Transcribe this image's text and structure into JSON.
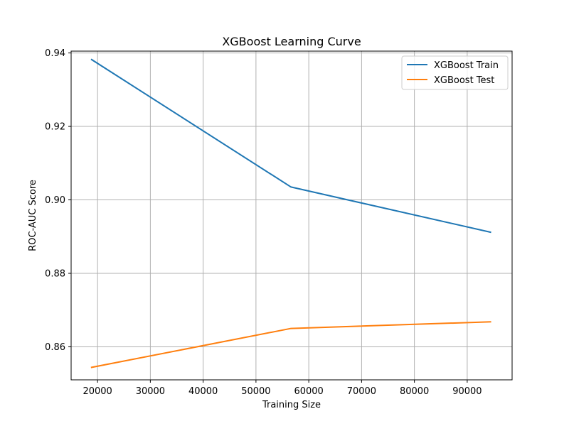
{
  "chart_data": {
    "type": "line",
    "title": "XGBoost Learning Curve",
    "xlabel": "Training Size",
    "ylabel": "ROC-AUC Score",
    "xlim": [
      15000,
      98500
    ],
    "ylim": [
      0.851,
      0.9405
    ],
    "x_ticks": [
      20000,
      30000,
      40000,
      50000,
      60000,
      70000,
      80000,
      90000
    ],
    "x_tick_labels": [
      "20000",
      "30000",
      "40000",
      "50000",
      "60000",
      "70000",
      "80000",
      "90000"
    ],
    "y_ticks": [
      0.86,
      0.88,
      0.9,
      0.92,
      0.94
    ],
    "y_tick_labels": [
      "0.86",
      "0.88",
      "0.90",
      "0.92",
      "0.94"
    ],
    "grid": true,
    "legend_position": "top-right",
    "x": [
      18880,
      56640,
      94400
    ],
    "series": [
      {
        "name": "XGBoost Train",
        "color": "#1f77b4",
        "values": [
          0.9382,
          0.9035,
          0.8912
        ]
      },
      {
        "name": "XGBoost Test",
        "color": "#ff7f0e",
        "values": [
          0.8544,
          0.865,
          0.8668
        ]
      }
    ]
  }
}
